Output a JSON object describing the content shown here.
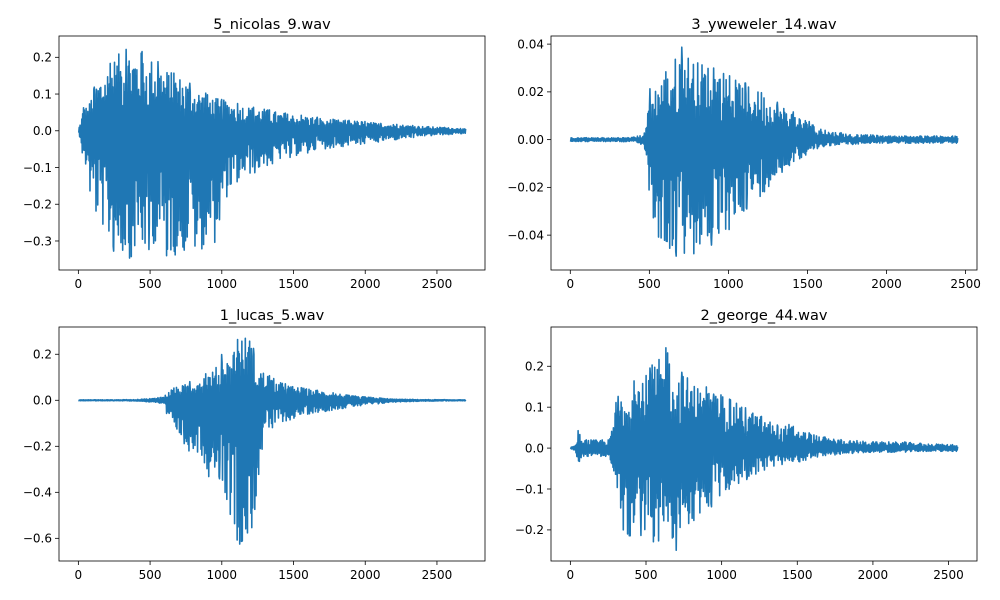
{
  "chart_data": [
    {
      "type": "line",
      "title": "5_nicolas_9.wav",
      "xlim": [
        -135,
        2835
      ],
      "ylim": [
        -0.379,
        0.258
      ],
      "xticks": [
        0,
        500,
        1000,
        1500,
        2000,
        2500
      ],
      "xtick_labels": [
        "0",
        "500",
        "1000",
        "1500",
        "2000",
        "2500"
      ],
      "yticks": [
        -0.3,
        -0.2,
        -0.1,
        0.0,
        0.1,
        0.2
      ],
      "ytick_labels": [
        "−0.3",
        "−0.2",
        "−0.1",
        "0.0",
        "0.1",
        "0.2"
      ],
      "grid": false,
      "color": "#1f77b4",
      "series": [
        {
          "envelope": {
            "x": [
              0,
              20,
              40,
              60,
              80,
              100,
              150,
              200,
              250,
              300,
              350,
              400,
              450,
              500,
              550,
              600,
              650,
              700,
              750,
              800,
              850,
              900,
              950,
              1000,
              1050,
              1100,
              1150,
              1200,
              1300,
              1400,
              1500,
              1600,
              1700,
              1800,
              1900,
              2000,
              2100,
              2200,
              2300,
              2400,
              2500,
              2600,
              2700
            ],
            "max": [
              0.005,
              0.03,
              0.085,
              0.06,
              0.08,
              0.11,
              0.15,
              0.17,
              0.2,
              0.215,
              0.225,
              0.22,
              0.215,
              0.2,
              0.19,
              0.17,
              0.16,
              0.15,
              0.14,
              0.12,
              0.11,
              0.1,
              0.09,
              0.085,
              0.08,
              0.075,
              0.07,
              0.065,
              0.06,
              0.05,
              0.045,
              0.04,
              0.035,
              0.03,
              0.028,
              0.025,
              0.02,
              0.018,
              0.015,
              0.012,
              0.01,
              0.008,
              0.005
            ],
            "min": [
              -0.005,
              -0.03,
              -0.14,
              -0.08,
              -0.18,
              -0.2,
              -0.24,
              -0.3,
              -0.33,
              -0.34,
              -0.35,
              -0.33,
              -0.34,
              -0.32,
              -0.3,
              -0.34,
              -0.34,
              -0.34,
              -0.32,
              -0.34,
              -0.33,
              -0.29,
              -0.31,
              -0.21,
              -0.17,
              -0.14,
              -0.13,
              -0.12,
              -0.1,
              -0.08,
              -0.07,
              -0.06,
              -0.05,
              -0.045,
              -0.04,
              -0.035,
              -0.03,
              -0.025,
              -0.02,
              -0.015,
              -0.012,
              -0.01,
              -0.008
            ]
          }
        }
      ]
    },
    {
      "type": "line",
      "title": "3_yweweler_14.wav",
      "xlim": [
        -122,
        2572
      ],
      "ylim": [
        -0.0546,
        0.0434
      ],
      "xticks": [
        0,
        500,
        1000,
        1500,
        2000,
        2500
      ],
      "xtick_labels": [
        "0",
        "500",
        "1000",
        "1500",
        "2000",
        "2500"
      ],
      "yticks": [
        -0.04,
        -0.02,
        0.0,
        0.02,
        0.04
      ],
      "ytick_labels": [
        "−0.04",
        "−0.02",
        "0.00",
        "0.02",
        "0.04"
      ],
      "grid": false,
      "color": "#1f77b4",
      "series": [
        {
          "envelope": {
            "x": [
              0,
              100,
              200,
              300,
              400,
              450,
              480,
              500,
              520,
              550,
              600,
              650,
              700,
              750,
              800,
              850,
              900,
              950,
              1000,
              1050,
              1100,
              1150,
              1200,
              1250,
              1300,
              1350,
              1400,
              1450,
              1500,
              1550,
              1600,
              1700,
              1800,
              1900,
              2000,
              2100,
              2200,
              2300,
              2450
            ],
            "max": [
              0.0008,
              0.0008,
              0.0008,
              0.0008,
              0.001,
              0.002,
              0.005,
              0.022,
              0.018,
              0.025,
              0.028,
              0.033,
              0.039,
              0.036,
              0.032,
              0.033,
              0.03,
              0.03,
              0.027,
              0.025,
              0.024,
              0.022,
              0.02,
              0.018,
              0.016,
              0.014,
              0.012,
              0.01,
              0.008,
              0.006,
              0.004,
              0.003,
              0.002,
              0.002,
              0.0015,
              0.0015,
              0.0015,
              0.0015,
              0.0015
            ],
            "min": [
              -0.0008,
              -0.0008,
              -0.0008,
              -0.0008,
              -0.001,
              -0.002,
              -0.005,
              -0.025,
              -0.035,
              -0.04,
              -0.045,
              -0.048,
              -0.05,
              -0.049,
              -0.047,
              -0.045,
              -0.044,
              -0.042,
              -0.038,
              -0.034,
              -0.03,
              -0.027,
              -0.024,
              -0.02,
              -0.016,
              -0.013,
              -0.01,
              -0.008,
              -0.006,
              -0.004,
              -0.003,
              -0.002,
              -0.002,
              -0.0015,
              -0.0015,
              -0.0015,
              -0.0015,
              -0.0015,
              -0.0015
            ]
          }
        }
      ]
    },
    {
      "type": "line",
      "title": "1_lucas_5.wav",
      "xlim": [
        -135,
        2835
      ],
      "ylim": [
        -0.6985,
        0.3185
      ],
      "xticks": [
        0,
        500,
        1000,
        1500,
        2000,
        2500
      ],
      "xtick_labels": [
        "0",
        "500",
        "1000",
        "1500",
        "2000",
        "2500"
      ],
      "yticks": [
        -0.6,
        -0.4,
        -0.2,
        0.0,
        0.2
      ],
      "ytick_labels": [
        "−0.6",
        "−0.4",
        "−0.2",
        "0.0",
        "0.2"
      ],
      "grid": false,
      "color": "#1f77b4",
      "series": [
        {
          "envelope": {
            "x": [
              0,
              200,
              400,
              550,
              600,
              650,
              700,
              750,
              800,
              850,
              900,
              950,
              1000,
              1050,
              1100,
              1150,
              1200,
              1250,
              1300,
              1350,
              1400,
              1500,
              1600,
              1700,
              1800,
              1900,
              2000,
              2100,
              2200,
              2400,
              2700
            ],
            "max": [
              0.002,
              0.002,
              0.003,
              0.01,
              0.02,
              0.05,
              0.06,
              0.07,
              0.09,
              0.1,
              0.12,
              0.13,
              0.2,
              0.17,
              0.26,
              0.28,
              0.28,
              0.15,
              0.12,
              0.1,
              0.08,
              0.06,
              0.05,
              0.04,
              0.03,
              0.02,
              0.015,
              0.01,
              0.005,
              0.003,
              0.002
            ],
            "min": [
              -0.002,
              -0.002,
              -0.003,
              -0.01,
              -0.03,
              -0.12,
              -0.15,
              -0.2,
              -0.25,
              -0.21,
              -0.34,
              -0.3,
              -0.36,
              -0.48,
              -0.6,
              -0.65,
              -0.63,
              -0.37,
              -0.15,
              -0.12,
              -0.1,
              -0.08,
              -0.06,
              -0.05,
              -0.04,
              -0.03,
              -0.02,
              -0.015,
              -0.008,
              -0.004,
              -0.002
            ]
          }
        }
      ]
    },
    {
      "type": "line",
      "title": "2_george_44.wav",
      "xlim": [
        -128,
        2688
      ],
      "ylim": [
        -0.276,
        0.296
      ],
      "xticks": [
        0,
        500,
        1000,
        1500,
        2000,
        2500
      ],
      "xtick_labels": [
        "0",
        "500",
        "1000",
        "1500",
        "2000",
        "2500"
      ],
      "yticks": [
        -0.2,
        -0.1,
        0.0,
        0.1,
        0.2
      ],
      "ytick_labels": [
        "−0.2",
        "−0.1",
        "0.0",
        "0.1",
        "0.2"
      ],
      "grid": false,
      "color": "#1f77b4",
      "series": [
        {
          "envelope": {
            "x": [
              0,
              30,
              50,
              80,
              150,
              250,
              280,
              300,
              350,
              400,
              450,
              500,
              550,
              600,
              650,
              700,
              750,
              800,
              850,
              900,
              950,
              1000,
              1050,
              1100,
              1150,
              1200,
              1250,
              1300,
              1350,
              1400,
              1450,
              1500,
              1550,
              1600,
              1650,
              1700,
              1800,
              1900,
              2000,
              2100,
              2200,
              2300,
              2400,
              2560
            ],
            "max": [
              0.002,
              0.005,
              0.045,
              0.02,
              0.02,
              0.02,
              0.05,
              0.12,
              0.14,
              0.16,
              0.17,
              0.18,
              0.21,
              0.22,
              0.26,
              0.2,
              0.18,
              0.17,
              0.14,
              0.16,
              0.13,
              0.14,
              0.12,
              0.11,
              0.1,
              0.09,
              0.08,
              0.07,
              0.06,
              0.05,
              0.06,
              0.045,
              0.04,
              0.035,
              0.03,
              0.025,
              0.02,
              0.018,
              0.015,
              0.015,
              0.015,
              0.012,
              0.01,
              0.008
            ],
            "min": [
              -0.002,
              -0.005,
              -0.04,
              -0.02,
              -0.02,
              -0.02,
              -0.06,
              -0.12,
              -0.2,
              -0.23,
              -0.22,
              -0.2,
              -0.24,
              -0.22,
              -0.2,
              -0.25,
              -0.2,
              -0.18,
              -0.17,
              -0.15,
              -0.14,
              -0.12,
              -0.1,
              -0.09,
              -0.08,
              -0.07,
              -0.06,
              -0.05,
              -0.045,
              -0.04,
              -0.04,
              -0.035,
              -0.03,
              -0.025,
              -0.02,
              -0.018,
              -0.015,
              -0.012,
              -0.01,
              -0.01,
              -0.01,
              -0.008,
              -0.008,
              -0.008
            ]
          }
        }
      ]
    }
  ]
}
